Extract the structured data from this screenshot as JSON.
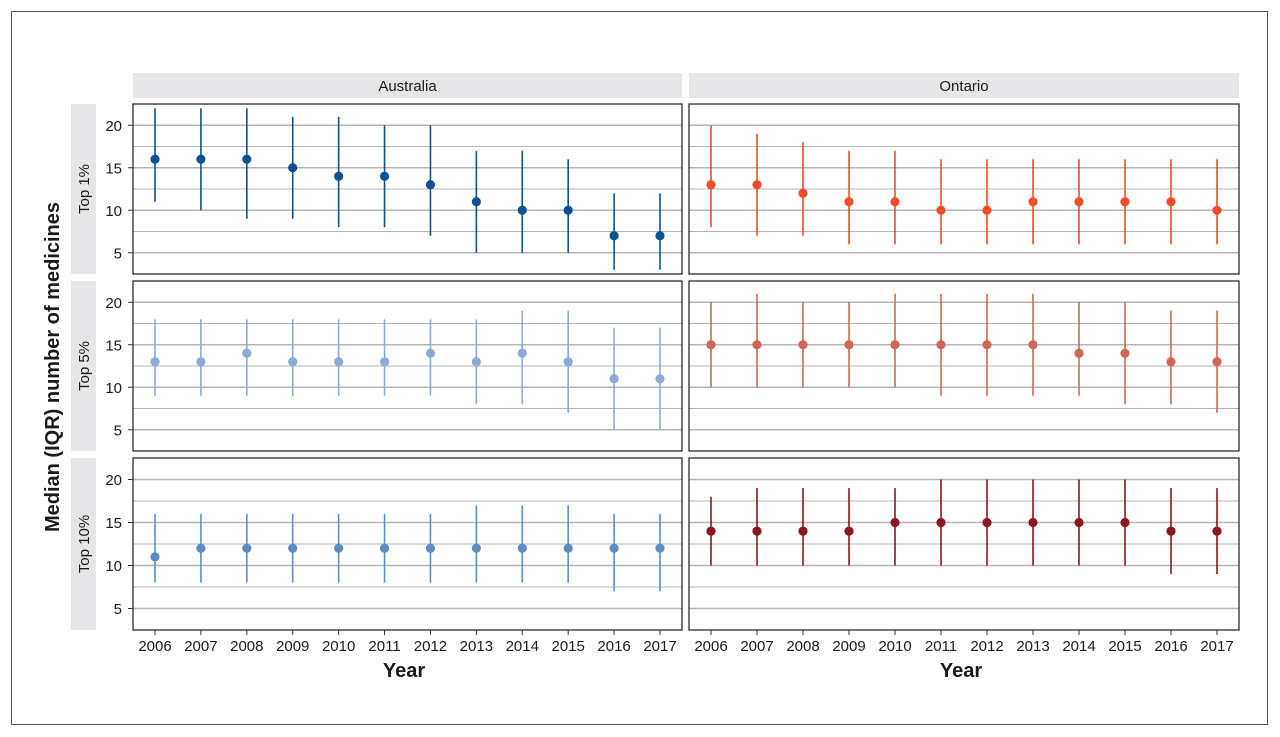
{
  "chart_data": {
    "type": "scatter",
    "subtype": "point-range (median with IQR), faceted",
    "xlabel": "Year",
    "ylabel": "Median (IQR) number of medicines",
    "columns": [
      "Australia",
      "Ontario"
    ],
    "rows": [
      "Top 1%",
      "Top 5%",
      "Top 10%"
    ],
    "x": [
      2006,
      2007,
      2008,
      2009,
      2010,
      2011,
      2012,
      2013,
      2014,
      2015,
      2016,
      2017
    ],
    "yticks": [
      5,
      10,
      15,
      20
    ],
    "ylim": [
      2.5,
      22.5
    ],
    "grid": true,
    "panels": [
      {
        "row": "Top 1%",
        "column": "Australia",
        "color": "#0b5290",
        "median": [
          16,
          16,
          16,
          15,
          14,
          14,
          13,
          11,
          10,
          10,
          7,
          7
        ],
        "q1": [
          11,
          10,
          9,
          9,
          8,
          8,
          7,
          5,
          5,
          5,
          3,
          3
        ],
        "q3": [
          22,
          22,
          22,
          21,
          21,
          20,
          20,
          17,
          17,
          16,
          12,
          12
        ]
      },
      {
        "row": "Top 1%",
        "column": "Ontario",
        "color": "#ef4d2a",
        "median": [
          13,
          13,
          12,
          11,
          11,
          10,
          10,
          11,
          11,
          11,
          11,
          10
        ],
        "q1": [
          8,
          7,
          7,
          6,
          6,
          6,
          6,
          6,
          6,
          6,
          6,
          6
        ],
        "q3": [
          20,
          19,
          18,
          17,
          17,
          16,
          16,
          16,
          16,
          16,
          16,
          16
        ]
      },
      {
        "row": "Top 5%",
        "column": "Australia",
        "color": "#8aaad8",
        "median": [
          13,
          13,
          14,
          13,
          13,
          13,
          14,
          13,
          14,
          13,
          11,
          11
        ],
        "q1": [
          9,
          9,
          9,
          9,
          9,
          9,
          9,
          8,
          8,
          7,
          5,
          5
        ],
        "q3": [
          18,
          18,
          18,
          18,
          18,
          18,
          18,
          18,
          19,
          19,
          17,
          17
        ]
      },
      {
        "row": "Top 5%",
        "column": "Ontario",
        "color": "#cf6657",
        "median": [
          15,
          15,
          15,
          15,
          15,
          15,
          15,
          15,
          14,
          14,
          13,
          13
        ],
        "q1": [
          10,
          10,
          10,
          10,
          10,
          9,
          9,
          9,
          9,
          8,
          8,
          7
        ],
        "q3": [
          20,
          21,
          20,
          20,
          21,
          21,
          21,
          21,
          20,
          20,
          19,
          19
        ]
      },
      {
        "row": "Top 10%",
        "column": "Australia",
        "color": "#5a8ec5",
        "median": [
          11,
          12,
          12,
          12,
          12,
          12,
          12,
          12,
          12,
          12,
          12,
          12
        ],
        "q1": [
          8,
          8,
          8,
          8,
          8,
          8,
          8,
          8,
          8,
          8,
          7,
          7
        ],
        "q3": [
          16,
          16,
          16,
          16,
          16,
          16,
          16,
          17,
          17,
          17,
          16,
          16
        ]
      },
      {
        "row": "Top 10%",
        "column": "Ontario",
        "color": "#8c1520",
        "median": [
          14,
          14,
          14,
          14,
          15,
          15,
          15,
          15,
          15,
          15,
          14,
          14
        ],
        "q1": [
          10,
          10,
          10,
          10,
          10,
          10,
          10,
          10,
          10,
          10,
          9,
          9
        ],
        "q3": [
          18,
          19,
          19,
          19,
          19,
          20,
          20,
          20,
          20,
          20,
          19,
          19
        ]
      }
    ]
  },
  "style": {
    "strip_fill": "#e6e6e9",
    "panel_border": "#1a1a1a",
    "gridline": "#b4b4b4"
  }
}
